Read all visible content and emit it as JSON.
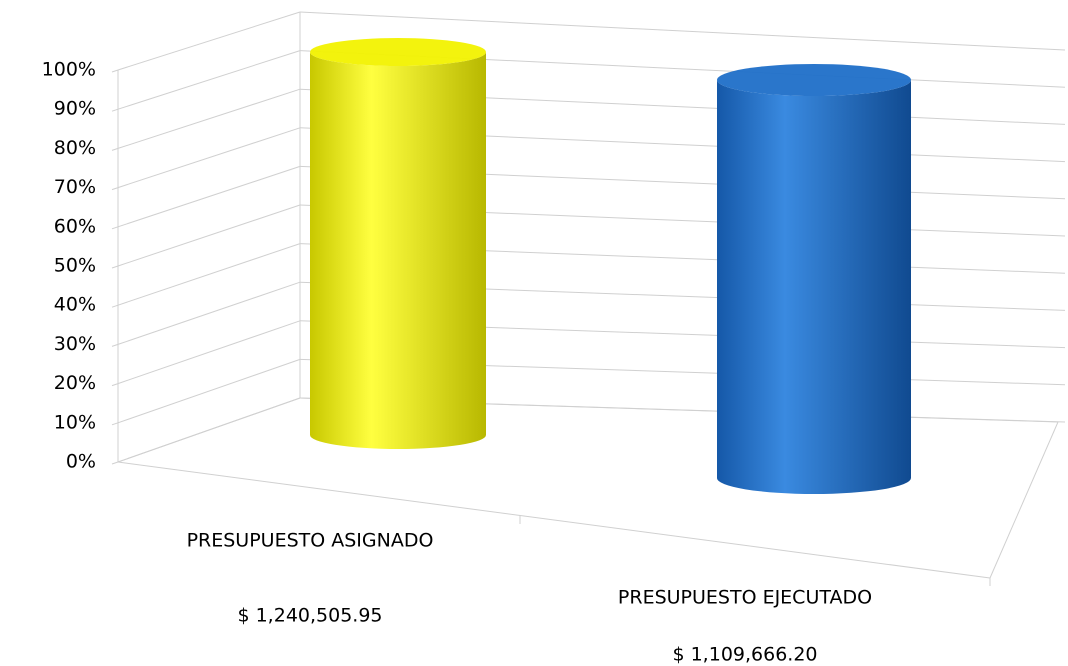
{
  "chart_data": {
    "type": "cylinder",
    "categories": [
      "PRESUPUESTO ASIGNADO",
      "PRESUPUESTO EJECUTADO"
    ],
    "amounts": [
      "$ 1,240,505.95",
      "$ 1,109,666.20"
    ],
    "series": [
      {
        "values": [
          100,
          100
        ],
        "colors": [
          "#f2f200",
          "#1f6fc8"
        ]
      }
    ],
    "ylim": [
      0,
      100
    ],
    "yticks": [
      {
        "value": 0,
        "label": "0%"
      },
      {
        "value": 10,
        "label": "10%"
      },
      {
        "value": 20,
        "label": "20%"
      },
      {
        "value": 30,
        "label": "30%"
      },
      {
        "value": 40,
        "label": "40%"
      },
      {
        "value": 50,
        "label": "50%"
      },
      {
        "value": 60,
        "label": "60%"
      },
      {
        "value": 70,
        "label": "70%"
      },
      {
        "value": 80,
        "label": "80%"
      },
      {
        "value": 90,
        "label": "90%"
      },
      {
        "value": 100,
        "label": "100%"
      }
    ],
    "grid": true
  }
}
